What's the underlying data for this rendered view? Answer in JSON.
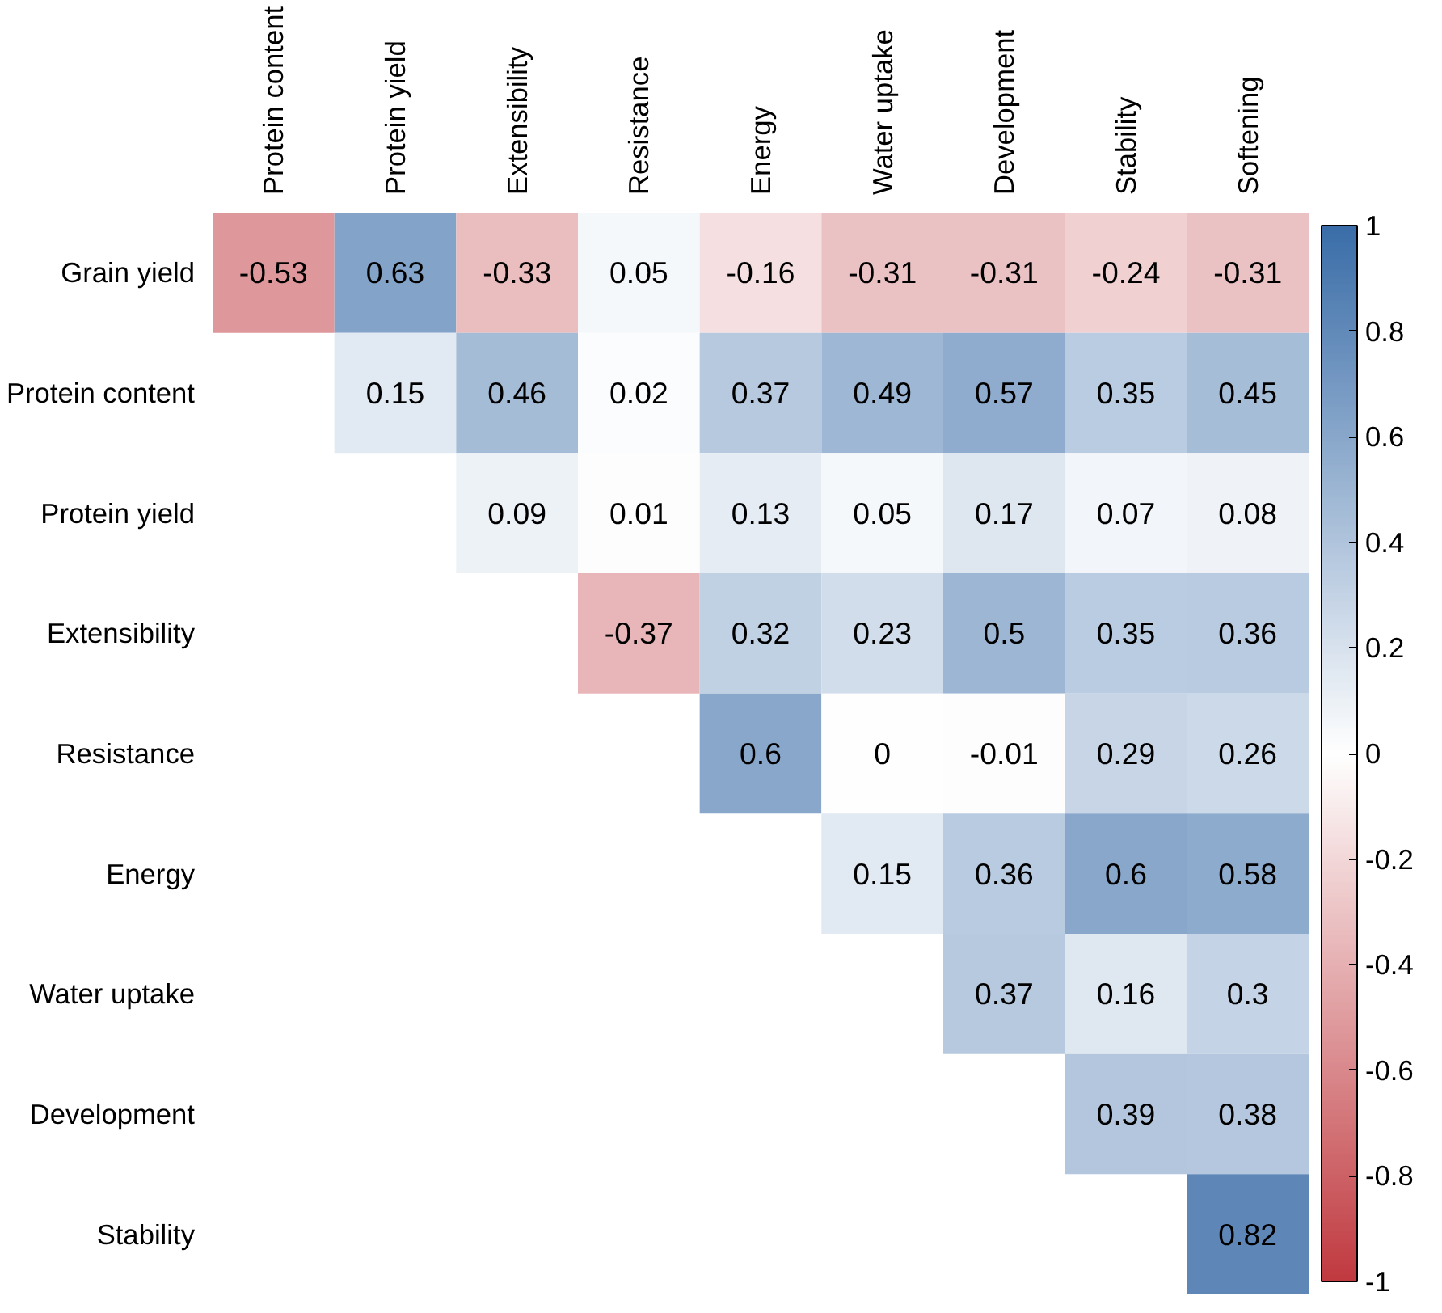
{
  "chart_data": {
    "type": "heatmap",
    "categories": [
      "Protein content",
      "Protein yield",
      "Extensibility",
      "Resistance",
      "Energy",
      "Water uptake",
      "Development",
      "Stability",
      "Softening"
    ],
    "y_categories": [
      "Grain yield",
      "Protein content",
      "Protein yield",
      "Extensibility",
      "Resistance",
      "Energy",
      "Water uptake",
      "Development",
      "Stability"
    ],
    "cells": [
      [
        -0.53,
        0.63,
        -0.33,
        0.05,
        -0.16,
        -0.31,
        -0.31,
        -0.24,
        -0.31
      ],
      [
        null,
        0.15,
        0.46,
        0.02,
        0.37,
        0.49,
        0.57,
        0.35,
        0.45
      ],
      [
        null,
        null,
        0.09,
        0.01,
        0.13,
        0.05,
        0.17,
        0.07,
        0.08
      ],
      [
        null,
        null,
        null,
        -0.37,
        0.32,
        0.23,
        0.5,
        0.35,
        0.36
      ],
      [
        null,
        null,
        null,
        null,
        0.6,
        0,
        -0.01,
        0.29,
        0.26
      ],
      [
        null,
        null,
        null,
        null,
        null,
        0.15,
        0.36,
        0.6,
        0.58
      ],
      [
        null,
        null,
        null,
        null,
        null,
        null,
        0.37,
        0.16,
        0.3
      ],
      [
        null,
        null,
        null,
        null,
        null,
        null,
        null,
        0.39,
        0.38
      ],
      [
        null,
        null,
        null,
        null,
        null,
        null,
        null,
        null,
        0.82
      ]
    ],
    "data_labels": true,
    "clim": [
      -1,
      1
    ],
    "cticks": [
      -1,
      -0.8,
      -0.6,
      -0.4,
      -0.2,
      0,
      0.2,
      0.4,
      0.6,
      0.8,
      1
    ]
  }
}
